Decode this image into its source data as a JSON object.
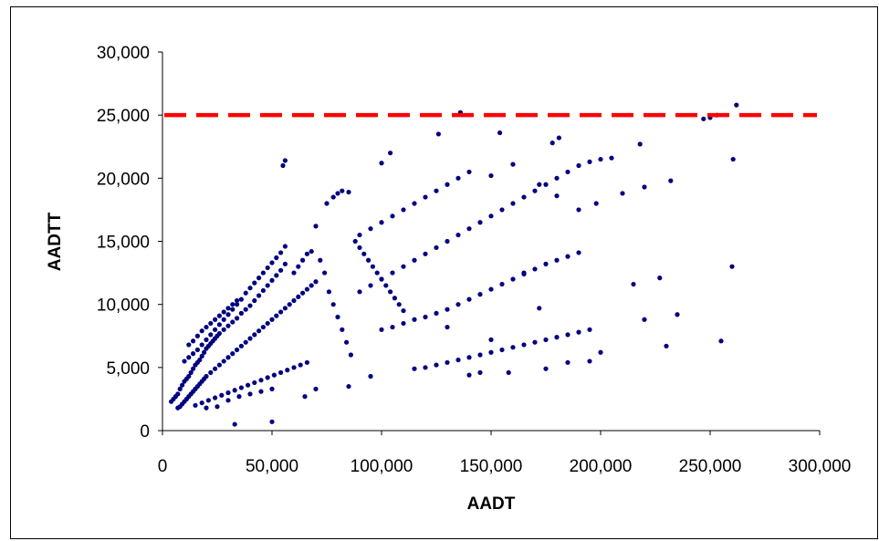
{
  "chart_data": {
    "type": "scatter",
    "title": "",
    "xlabel": "AADT",
    "ylabel": "AADTT",
    "xlim": [
      0,
      300000
    ],
    "ylim": [
      0,
      30000
    ],
    "x_ticks": [
      0,
      50000,
      100000,
      150000,
      200000,
      250000,
      300000
    ],
    "y_ticks": [
      0,
      5000,
      10000,
      15000,
      20000,
      25000,
      30000
    ],
    "x_tick_labels": [
      "0",
      "50,000",
      "100,000",
      "150,000",
      "200,000",
      "250,000",
      "300,000"
    ],
    "y_tick_labels": [
      "0",
      "5,000",
      "10,000",
      "15,000",
      "20,000",
      "25,000",
      "30,000"
    ],
    "grid": false,
    "legend": "none",
    "reference_line": {
      "y": 25000,
      "color": "#ff0000",
      "style": "dashed"
    },
    "point_color": "#000080",
    "points": [
      [
        4000,
        2300
      ],
      [
        5000,
        2500
      ],
      [
        6000,
        2700
      ],
      [
        7000,
        2900
      ],
      [
        8000,
        3300
      ],
      [
        9000,
        3600
      ],
      [
        10000,
        3900
      ],
      [
        11000,
        4100
      ],
      [
        12000,
        4300
      ],
      [
        13000,
        4600
      ],
      [
        14000,
        4900
      ],
      [
        15000,
        5200
      ],
      [
        16000,
        5400
      ],
      [
        17000,
        5600
      ],
      [
        18000,
        5900
      ],
      [
        19000,
        6200
      ],
      [
        20000,
        6500
      ],
      [
        21000,
        6700
      ],
      [
        22000,
        6900
      ],
      [
        23000,
        7100
      ],
      [
        24000,
        7300
      ],
      [
        25000,
        7500
      ],
      [
        26000,
        7700
      ],
      [
        28000,
        8000
      ],
      [
        30000,
        8300
      ],
      [
        32000,
        8600
      ],
      [
        34000,
        8900
      ],
      [
        36000,
        9300
      ],
      [
        38000,
        9600
      ],
      [
        40000,
        9900
      ],
      [
        42000,
        10300
      ],
      [
        44000,
        10700
      ],
      [
        46000,
        11100
      ],
      [
        48000,
        11500
      ],
      [
        50000,
        11900
      ],
      [
        52000,
        12300
      ],
      [
        54000,
        12700
      ],
      [
        56000,
        13200
      ],
      [
        7000,
        1800
      ],
      [
        8000,
        1900
      ],
      [
        9000,
        2100
      ],
      [
        10000,
        2300
      ],
      [
        11000,
        2500
      ],
      [
        12000,
        2700
      ],
      [
        13000,
        2900
      ],
      [
        14000,
        3100
      ],
      [
        15000,
        3300
      ],
      [
        16000,
        3500
      ],
      [
        17000,
        3700
      ],
      [
        18000,
        3900
      ],
      [
        19000,
        4100
      ],
      [
        20000,
        4300
      ],
      [
        22000,
        4600
      ],
      [
        24000,
        4900
      ],
      [
        26000,
        5200
      ],
      [
        28000,
        5500
      ],
      [
        30000,
        5800
      ],
      [
        32000,
        6100
      ],
      [
        34000,
        6400
      ],
      [
        36000,
        6700
      ],
      [
        38000,
        7000
      ],
      [
        40000,
        7300
      ],
      [
        42000,
        7600
      ],
      [
        44000,
        7900
      ],
      [
        46000,
        8200
      ],
      [
        48000,
        8500
      ],
      [
        50000,
        8800
      ],
      [
        52000,
        9100
      ],
      [
        54000,
        9400
      ],
      [
        56000,
        9700
      ],
      [
        58000,
        10000
      ],
      [
        60000,
        10300
      ],
      [
        62000,
        10600
      ],
      [
        64000,
        10900
      ],
      [
        66000,
        11200
      ],
      [
        68000,
        11500
      ],
      [
        70000,
        11800
      ],
      [
        10000,
        5500
      ],
      [
        12000,
        5800
      ],
      [
        14000,
        6100
      ],
      [
        16000,
        6400
      ],
      [
        18000,
        6800
      ],
      [
        20000,
        7200
      ],
      [
        22000,
        7600
      ],
      [
        24000,
        8000
      ],
      [
        26000,
        8400
      ],
      [
        28000,
        8800
      ],
      [
        30000,
        9200
      ],
      [
        32000,
        9600
      ],
      [
        34000,
        10000
      ],
      [
        36000,
        10400
      ],
      [
        38000,
        10900
      ],
      [
        40000,
        11300
      ],
      [
        42000,
        11700
      ],
      [
        44000,
        12100
      ],
      [
        46000,
        12500
      ],
      [
        48000,
        12900
      ],
      [
        50000,
        13300
      ],
      [
        52000,
        13700
      ],
      [
        54000,
        14100
      ],
      [
        56000,
        14600
      ],
      [
        12000,
        6800
      ],
      [
        14000,
        7100
      ],
      [
        16000,
        7500
      ],
      [
        18000,
        7900
      ],
      [
        20000,
        8200
      ],
      [
        22000,
        8500
      ],
      [
        24000,
        8800
      ],
      [
        26000,
        9100
      ],
      [
        28000,
        9400
      ],
      [
        30000,
        9700
      ],
      [
        32000,
        10000
      ],
      [
        34000,
        10300
      ],
      [
        15000,
        2000
      ],
      [
        18000,
        2200
      ],
      [
        21000,
        2400
      ],
      [
        24000,
        2600
      ],
      [
        27000,
        2800
      ],
      [
        30000,
        3000
      ],
      [
        33000,
        3200
      ],
      [
        36000,
        3400
      ],
      [
        39000,
        3600
      ],
      [
        42000,
        3800
      ],
      [
        45000,
        4000
      ],
      [
        48000,
        4200
      ],
      [
        51000,
        4400
      ],
      [
        54000,
        4600
      ],
      [
        57000,
        4800
      ],
      [
        60000,
        5000
      ],
      [
        63000,
        5200
      ],
      [
        66000,
        5400
      ],
      [
        20000,
        1800
      ],
      [
        25000,
        1900
      ],
      [
        30000,
        2400
      ],
      [
        35000,
        2700
      ],
      [
        40000,
        2900
      ],
      [
        45000,
        3100
      ],
      [
        50000,
        3300
      ],
      [
        33000,
        500
      ],
      [
        50000,
        700
      ],
      [
        55000,
        21000
      ],
      [
        56000,
        21400
      ],
      [
        60000,
        12500
      ],
      [
        62000,
        13000
      ],
      [
        64000,
        13500
      ],
      [
        66000,
        14000
      ],
      [
        68000,
        14200
      ],
      [
        70000,
        16200
      ],
      [
        72000,
        13500
      ],
      [
        74000,
        12500
      ],
      [
        76000,
        11000
      ],
      [
        78000,
        10000
      ],
      [
        80000,
        9000
      ],
      [
        82000,
        8000
      ],
      [
        84000,
        7000
      ],
      [
        86000,
        6000
      ],
      [
        75000,
        18000
      ],
      [
        78000,
        18500
      ],
      [
        80000,
        18800
      ],
      [
        82000,
        19000
      ],
      [
        85000,
        18900
      ],
      [
        88000,
        15000
      ],
      [
        90000,
        14500
      ],
      [
        92000,
        14000
      ],
      [
        94000,
        13500
      ],
      [
        96000,
        13000
      ],
      [
        98000,
        12500
      ],
      [
        100000,
        12000
      ],
      [
        102000,
        11500
      ],
      [
        104000,
        11000
      ],
      [
        106000,
        10500
      ],
      [
        108000,
        10000
      ],
      [
        110000,
        9500
      ],
      [
        90000,
        15500
      ],
      [
        95000,
        16000
      ],
      [
        100000,
        16500
      ],
      [
        105000,
        17000
      ],
      [
        110000,
        17500
      ],
      [
        115000,
        18000
      ],
      [
        120000,
        18500
      ],
      [
        125000,
        19000
      ],
      [
        130000,
        19500
      ],
      [
        135000,
        20000
      ],
      [
        140000,
        20500
      ],
      [
        90000,
        11000
      ],
      [
        95000,
        11500
      ],
      [
        100000,
        12000
      ],
      [
        105000,
        12500
      ],
      [
        110000,
        13000
      ],
      [
        115000,
        13500
      ],
      [
        120000,
        14000
      ],
      [
        125000,
        14500
      ],
      [
        130000,
        15000
      ],
      [
        135000,
        15500
      ],
      [
        140000,
        16000
      ],
      [
        145000,
        16500
      ],
      [
        150000,
        17000
      ],
      [
        155000,
        17500
      ],
      [
        160000,
        18000
      ],
      [
        165000,
        18500
      ],
      [
        170000,
        19000
      ],
      [
        175000,
        19500
      ],
      [
        180000,
        20000
      ],
      [
        185000,
        20500
      ],
      [
        190000,
        21000
      ],
      [
        195000,
        21300
      ],
      [
        200000,
        21500
      ],
      [
        205000,
        21600
      ],
      [
        100000,
        8000
      ],
      [
        105000,
        8200
      ],
      [
        110000,
        8500
      ],
      [
        115000,
        8800
      ],
      [
        120000,
        9000
      ],
      [
        125000,
        9300
      ],
      [
        130000,
        9600
      ],
      [
        135000,
        10000
      ],
      [
        140000,
        10400
      ],
      [
        145000,
        10800
      ],
      [
        150000,
        11200
      ],
      [
        155000,
        11600
      ],
      [
        160000,
        12000
      ],
      [
        165000,
        12400
      ],
      [
        170000,
        12800
      ],
      [
        175000,
        13200
      ],
      [
        180000,
        13500
      ],
      [
        185000,
        13800
      ],
      [
        190000,
        14100
      ],
      [
        120000,
        5000
      ],
      [
        125000,
        5200
      ],
      [
        130000,
        5400
      ],
      [
        135000,
        5600
      ],
      [
        140000,
        5800
      ],
      [
        145000,
        6000
      ],
      [
        150000,
        6200
      ],
      [
        155000,
        6400
      ],
      [
        160000,
        6600
      ],
      [
        165000,
        6800
      ],
      [
        170000,
        7000
      ],
      [
        175000,
        7200
      ],
      [
        180000,
        7400
      ],
      [
        185000,
        7600
      ],
      [
        190000,
        7800
      ],
      [
        195000,
        8000
      ],
      [
        200000,
        6200
      ],
      [
        100000,
        21200
      ],
      [
        104000,
        22000
      ],
      [
        126000,
        23500
      ],
      [
        136000,
        25200
      ],
      [
        154000,
        23600
      ],
      [
        178000,
        22800
      ],
      [
        181000,
        23200
      ],
      [
        218000,
        22700
      ],
      [
        150000,
        20200
      ],
      [
        160000,
        21100
      ],
      [
        172000,
        19500
      ],
      [
        180000,
        18600
      ],
      [
        190000,
        17500
      ],
      [
        198000,
        18000
      ],
      [
        210000,
        18800
      ],
      [
        220000,
        19300
      ],
      [
        232000,
        19800
      ],
      [
        215000,
        11600
      ],
      [
        220000,
        8800
      ],
      [
        227000,
        12100
      ],
      [
        230000,
        6700
      ],
      [
        235000,
        9200
      ],
      [
        247000,
        24700
      ],
      [
        250000,
        24800
      ],
      [
        253000,
        25000
      ],
      [
        255000,
        7100
      ],
      [
        260000,
        13000
      ],
      [
        260500,
        21500
      ],
      [
        262000,
        25800
      ],
      [
        140000,
        4400
      ],
      [
        145000,
        4600
      ],
      [
        158000,
        4600
      ],
      [
        175000,
        4900
      ],
      [
        185000,
        5400
      ],
      [
        195000,
        5500
      ],
      [
        165000,
        12500
      ],
      [
        172000,
        9700
      ],
      [
        150000,
        7200
      ],
      [
        130000,
        8200
      ],
      [
        115000,
        4900
      ],
      [
        95000,
        4300
      ],
      [
        85000,
        3500
      ],
      [
        70000,
        3300
      ],
      [
        65000,
        2700
      ]
    ]
  }
}
